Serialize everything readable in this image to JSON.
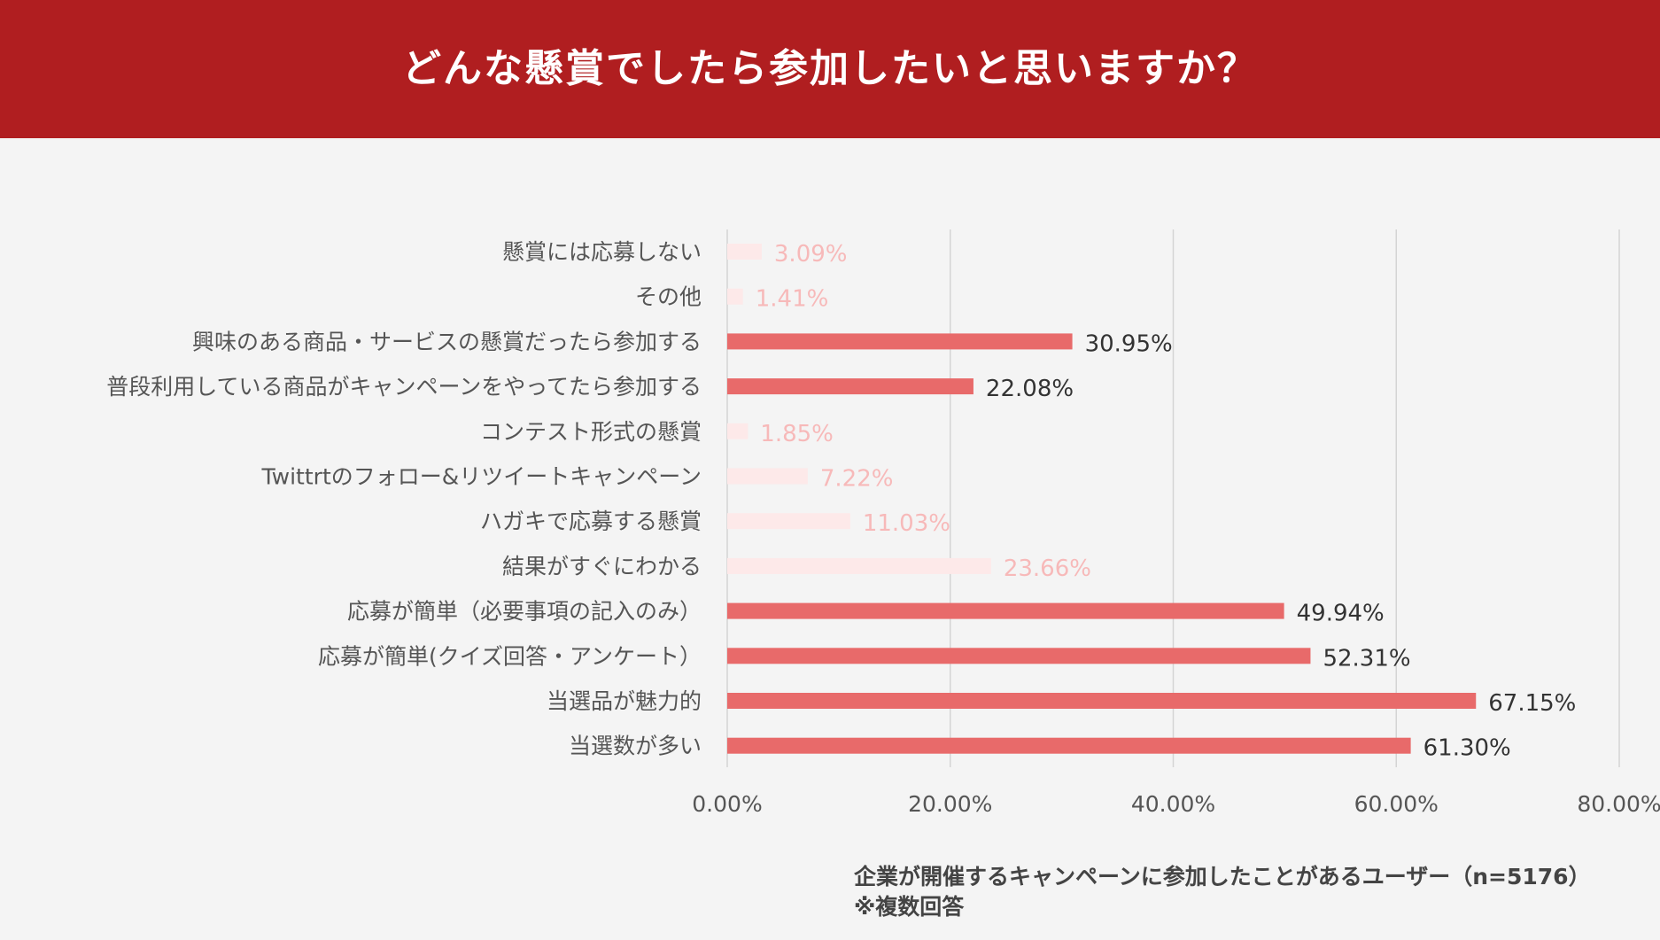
{
  "header": {
    "title": "どんな懸賞でしたら参加したいと思いますか？"
  },
  "colors": {
    "header_bg": "#b01e20",
    "bar_highlight": "#e86a6a",
    "bar_muted": "#fde9e9",
    "label_highlight": "#333333",
    "label_muted": "#f7b9b9",
    "grid": "#d4d4d4"
  },
  "chart_data": {
    "type": "bar",
    "orientation": "horizontal",
    "title": "どんな懸賞でしたら参加したいと思いますか？",
    "categories": [
      "懸賞には応募しない",
      "その他",
      "興味のある商品・サービスの懸賞だったら参加する",
      "普段利用している商品がキャンペーンをやってたら参加する",
      "コンテスト形式の懸賞",
      "Twittrtのフォロー&リツイートキャンペーン",
      "ハガキで応募する懸賞",
      "結果がすぐにわかる",
      "応募が簡単（必要事項の記入のみ）",
      "応募が簡単(クイズ回答・アンケート）",
      "当選品が魅力的",
      "当選数が多い"
    ],
    "values": [
      3.09,
      1.41,
      30.95,
      22.08,
      1.85,
      7.22,
      11.03,
      23.66,
      49.94,
      52.31,
      67.15,
      61.3
    ],
    "value_labels": [
      "3.09%",
      "1.41%",
      "30.95%",
      "22.08%",
      "1.85%",
      "7.22%",
      "11.03%",
      "23.66%",
      "49.94%",
      "52.31%",
      "67.15%",
      "61.30%"
    ],
    "highlighted": [
      false,
      false,
      true,
      true,
      false,
      false,
      false,
      false,
      true,
      true,
      true,
      true
    ],
    "xlim": [
      0,
      80
    ],
    "xticks": [
      "0.00%",
      "20.00%",
      "40.00%",
      "60.00%",
      "80.00%"
    ],
    "grid": true,
    "xlabel": "",
    "ylabel": ""
  },
  "footnote": {
    "line1": "企業が開催するキャンペーンに参加したことがあるユーザー（n=5176）",
    "line2": "※複数回答"
  }
}
